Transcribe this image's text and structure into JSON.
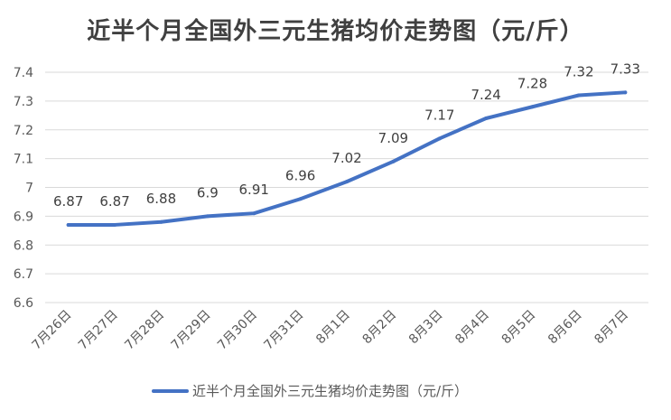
{
  "chart_data": {
    "type": "line",
    "title": "近半个月全国外三元生猪均价走势图（元/斤）",
    "xlabel": "",
    "ylabel": "",
    "categories": [
      "7月26日",
      "7月27日",
      "7月28日",
      "7月29日",
      "7月30日",
      "7月31日",
      "8月1日",
      "8月2日",
      "8月3日",
      "8月4日",
      "8月5日",
      "8月6日",
      "8月7日"
    ],
    "series": [
      {
        "name": "近半个月全国外三元生猪均价走势图（元/斤）",
        "values": [
          6.87,
          6.87,
          6.88,
          6.9,
          6.91,
          6.96,
          7.02,
          7.09,
          7.17,
          7.24,
          7.28,
          7.32,
          7.33
        ],
        "value_labels": [
          "6.87",
          "6.87",
          "6.88",
          "6.9",
          "6.91",
          "6.96",
          "7.02",
          "7.09",
          "7.17",
          "7.24",
          "7.28",
          "7.32",
          "7.33"
        ],
        "color": "#4472C4"
      }
    ],
    "ylim": [
      6.6,
      7.4
    ],
    "yticks": [
      6.6,
      6.7,
      6.8,
      6.9,
      7.0,
      7.1,
      7.2,
      7.3,
      7.4
    ],
    "ytick_labels": [
      "6.6",
      "6.7",
      "6.8",
      "6.9",
      "7",
      "7.1",
      "7.2",
      "7.3",
      "7.4"
    ],
    "grid": true,
    "legend_position": "bottom",
    "gridline_color": "#d9d9d9"
  }
}
